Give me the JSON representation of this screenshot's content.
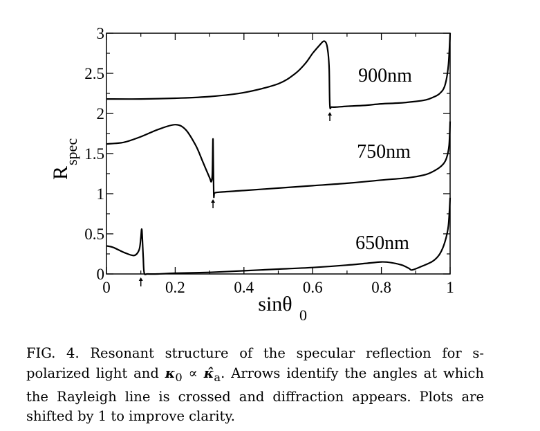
{
  "chart_data": {
    "type": "line",
    "xlabel": "sinθ",
    "xlabel_sub": "0",
    "ylabel": "R",
    "ylabel_sub": "spec",
    "xlim": [
      0,
      1
    ],
    "ylim": [
      0,
      3
    ],
    "x_ticks": [
      0,
      0.2,
      0.4,
      0.6,
      0.8,
      1
    ],
    "x_tick_labels": [
      "0",
      "0.2",
      "0.4",
      "0.6",
      "0.8",
      "1"
    ],
    "y_ticks": [
      0,
      0.5,
      1,
      1.5,
      2,
      2.5,
      3
    ],
    "y_tick_labels": [
      "0",
      "0.5",
      "1",
      "1.5",
      "2",
      "2.5",
      "3"
    ],
    "grid": false,
    "legend": "none",
    "series": [
      {
        "name": "900nm",
        "x": [
          0,
          0.1,
          0.2,
          0.3,
          0.4,
          0.5,
          0.55,
          0.58,
          0.6,
          0.62,
          0.632,
          0.64,
          0.645,
          0.648,
          0.65,
          0.655,
          0.67,
          0.7,
          0.75,
          0.8,
          0.85,
          0.9,
          0.93,
          0.95,
          0.97,
          0.985,
          0.995,
          1.0
        ],
        "y": [
          2.18,
          2.18,
          2.19,
          2.21,
          2.26,
          2.37,
          2.5,
          2.63,
          2.75,
          2.85,
          2.9,
          2.87,
          2.75,
          2.55,
          2.1,
          2.08,
          2.08,
          2.09,
          2.1,
          2.12,
          2.13,
          2.15,
          2.17,
          2.2,
          2.25,
          2.35,
          2.6,
          3.0
        ]
      },
      {
        "name": "750nm",
        "x": [
          0,
          0.05,
          0.1,
          0.15,
          0.2,
          0.23,
          0.26,
          0.28,
          0.3,
          0.305,
          0.308,
          0.31,
          0.312,
          0.315,
          0.33,
          0.4,
          0.5,
          0.6,
          0.7,
          0.8,
          0.88,
          0.93,
          0.96,
          0.98,
          0.99,
          0.997,
          1.0
        ],
        "y": [
          1.62,
          1.64,
          1.71,
          1.8,
          1.86,
          1.8,
          1.6,
          1.4,
          1.2,
          1.15,
          1.25,
          1.68,
          1.0,
          1.01,
          1.02,
          1.04,
          1.07,
          1.1,
          1.13,
          1.17,
          1.2,
          1.24,
          1.3,
          1.37,
          1.45,
          1.6,
          1.9
        ]
      },
      {
        "name": "650nm",
        "x": [
          0,
          0.02,
          0.05,
          0.08,
          0.095,
          0.1,
          0.103,
          0.107,
          0.11,
          0.12,
          0.15,
          0.2,
          0.3,
          0.4,
          0.5,
          0.6,
          0.7,
          0.75,
          0.8,
          0.83,
          0.86,
          0.88,
          0.89,
          0.92,
          0.95,
          0.97,
          0.985,
          0.995,
          1.0
        ],
        "y": [
          0.35,
          0.33,
          0.27,
          0.23,
          0.3,
          0.45,
          0.55,
          0.2,
          0.01,
          0.0,
          0.0,
          0.01,
          0.02,
          0.04,
          0.06,
          0.08,
          0.11,
          0.13,
          0.15,
          0.14,
          0.11,
          0.07,
          0.05,
          0.1,
          0.16,
          0.25,
          0.4,
          0.6,
          0.95
        ]
      }
    ],
    "curve_labels": [
      "900nm",
      "750nm",
      "650nm"
    ],
    "arrows": [
      {
        "series": "650nm",
        "x": 0.1
      },
      {
        "series": "750nm",
        "x": 0.31
      },
      {
        "series": "900nm",
        "x": 0.65
      }
    ]
  },
  "caption": {
    "lead": "FIG. 4.",
    "text_1": " Resonant structure of the specular reflection for s-polarized light and ",
    "kappa0": "κ",
    "kappa0_sub": "0",
    "proportional": " ∝ ",
    "kappa_hat": "κ̂",
    "kappa_hat_sub": "a",
    "text_2": ". Arrows identify the angles at which the Rayleigh line is crossed and diffraction appears. Plots are shifted by 1 to improve clarity."
  }
}
